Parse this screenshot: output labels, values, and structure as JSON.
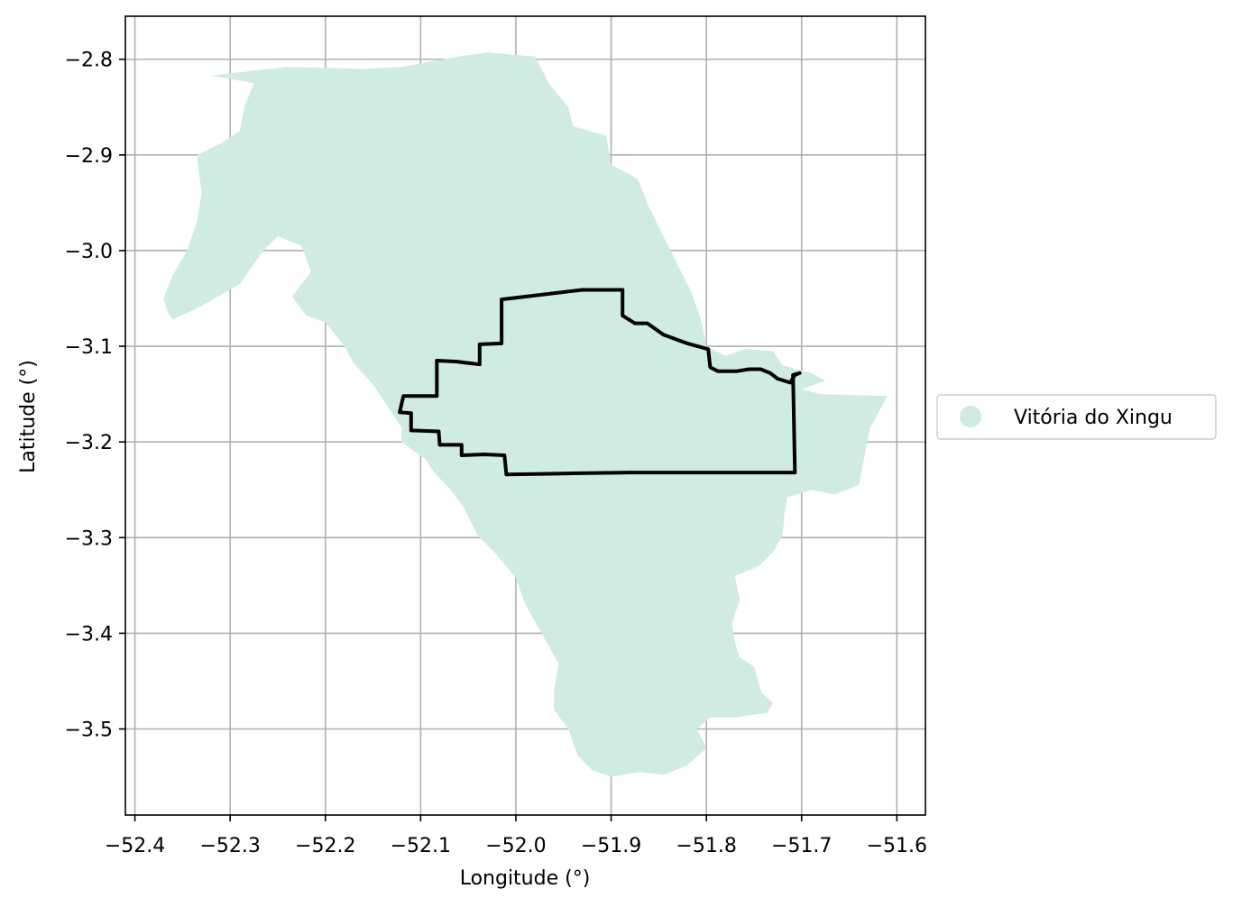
{
  "chart_data": {
    "type": "map",
    "xlabel": "Longitude (°)",
    "ylabel": "Latitude (°)",
    "xlim": [
      -52.41,
      -51.57
    ],
    "ylim": [
      -3.59,
      -2.755
    ],
    "grid": true,
    "x_ticks": [
      -52.4,
      -52.3,
      -52.2,
      -52.1,
      -52.0,
      -51.9,
      -51.8,
      -51.7,
      -51.6
    ],
    "x_tick_labels": [
      "−52.4",
      "−52.3",
      "−52.2",
      "−52.1",
      "−52.0",
      "−51.9",
      "−51.8",
      "−51.7",
      "−51.6"
    ],
    "y_ticks": [
      -2.8,
      -2.9,
      -3.0,
      -3.1,
      -3.2,
      -3.3,
      -3.4,
      -3.5
    ],
    "y_tick_labels": [
      "−2.8",
      "−2.9",
      "−3.0",
      "−3.1",
      "−3.2",
      "−3.3",
      "−3.4",
      "−3.5"
    ],
    "legend": {
      "placement": "center-right-outside",
      "entries": [
        {
          "label": "Vitória do Xingu",
          "color": "#d0ebdf",
          "marker": "circle"
        }
      ]
    },
    "region": {
      "name": "Vitória do Xingu",
      "fill": "#d0ebdf",
      "polygon": [
        [
          -52.32,
          -2.817
        ],
        [
          -52.24,
          -2.808
        ],
        [
          -52.16,
          -2.81
        ],
        [
          -52.12,
          -2.808
        ],
        [
          -52.06,
          -2.797
        ],
        [
          -52.03,
          -2.793
        ],
        [
          -51.98,
          -2.797
        ],
        [
          -51.965,
          -2.826
        ],
        [
          -51.945,
          -2.85
        ],
        [
          -51.94,
          -2.87
        ],
        [
          -51.905,
          -2.88
        ],
        [
          -51.9,
          -2.91
        ],
        [
          -51.872,
          -2.925
        ],
        [
          -51.86,
          -2.955
        ],
        [
          -51.845,
          -2.985
        ],
        [
          -51.83,
          -3.015
        ],
        [
          -51.815,
          -3.045
        ],
        [
          -51.805,
          -3.075
        ],
        [
          -51.8,
          -3.1
        ],
        [
          -51.78,
          -3.11
        ],
        [
          -51.76,
          -3.103
        ],
        [
          -51.73,
          -3.105
        ],
        [
          -51.72,
          -3.12
        ],
        [
          -51.69,
          -3.128
        ],
        [
          -51.675,
          -3.136
        ],
        [
          -51.7,
          -3.145
        ],
        [
          -51.68,
          -3.15
        ],
        [
          -51.61,
          -3.152
        ],
        [
          -51.628,
          -3.185
        ],
        [
          -51.64,
          -3.245
        ],
        [
          -51.665,
          -3.255
        ],
        [
          -51.69,
          -3.25
        ],
        [
          -51.715,
          -3.258
        ],
        [
          -51.718,
          -3.275
        ],
        [
          -51.72,
          -3.298
        ],
        [
          -51.73,
          -3.315
        ],
        [
          -51.745,
          -3.33
        ],
        [
          -51.77,
          -3.34
        ],
        [
          -51.765,
          -3.365
        ],
        [
          -51.773,
          -3.39
        ],
        [
          -51.77,
          -3.41
        ],
        [
          -51.765,
          -3.425
        ],
        [
          -51.75,
          -3.435
        ],
        [
          -51.742,
          -3.462
        ],
        [
          -51.73,
          -3.473
        ],
        [
          -51.736,
          -3.483
        ],
        [
          -51.77,
          -3.488
        ],
        [
          -51.796,
          -3.488
        ],
        [
          -51.81,
          -3.5
        ],
        [
          -51.8,
          -3.52
        ],
        [
          -51.82,
          -3.538
        ],
        [
          -51.845,
          -3.548
        ],
        [
          -51.87,
          -3.545
        ],
        [
          -51.9,
          -3.55
        ],
        [
          -51.92,
          -3.543
        ],
        [
          -51.935,
          -3.528
        ],
        [
          -51.945,
          -3.5
        ],
        [
          -51.96,
          -3.48
        ],
        [
          -51.96,
          -3.46
        ],
        [
          -51.955,
          -3.432
        ],
        [
          -51.97,
          -3.405
        ],
        [
          -51.99,
          -3.37
        ],
        [
          -52.0,
          -3.342
        ],
        [
          -52.02,
          -3.318
        ],
        [
          -52.04,
          -3.298
        ],
        [
          -52.055,
          -3.268
        ],
        [
          -52.07,
          -3.248
        ],
        [
          -52.085,
          -3.233
        ],
        [
          -52.095,
          -3.218
        ],
        [
          -52.12,
          -3.2
        ],
        [
          -52.12,
          -3.185
        ],
        [
          -52.13,
          -3.17
        ],
        [
          -52.15,
          -3.14
        ],
        [
          -52.17,
          -3.118
        ],
        [
          -52.18,
          -3.1
        ],
        [
          -52.2,
          -3.075
        ],
        [
          -52.22,
          -3.068
        ],
        [
          -52.235,
          -3.048
        ],
        [
          -52.215,
          -3.022
        ],
        [
          -52.225,
          -2.995
        ],
        [
          -52.25,
          -2.985
        ],
        [
          -52.265,
          -3.0
        ],
        [
          -52.29,
          -3.035
        ],
        [
          -52.33,
          -3.058
        ],
        [
          -52.36,
          -3.072
        ],
        [
          -52.365,
          -3.065
        ],
        [
          -52.37,
          -3.05
        ],
        [
          -52.36,
          -3.025
        ],
        [
          -52.345,
          -3.0
        ],
        [
          -52.335,
          -2.97
        ],
        [
          -52.33,
          -2.94
        ],
        [
          -52.335,
          -2.9
        ],
        [
          -52.31,
          -2.888
        ],
        [
          -52.29,
          -2.875
        ],
        [
          -52.285,
          -2.85
        ],
        [
          -52.275,
          -2.825
        ]
      ]
    },
    "boundary": {
      "stroke": "#000000",
      "polyline": [
        [
          -52.015,
          -3.051
        ],
        [
          -51.93,
          -3.041
        ],
        [
          -51.888,
          -3.041
        ],
        [
          -51.888,
          -3.068
        ],
        [
          -51.875,
          -3.076
        ],
        [
          -51.862,
          -3.076
        ],
        [
          -51.845,
          -3.088
        ],
        [
          -51.82,
          -3.097
        ],
        [
          -51.798,
          -3.103
        ],
        [
          -51.796,
          -3.122
        ],
        [
          -51.788,
          -3.126
        ],
        [
          -51.768,
          -3.126
        ],
        [
          -51.755,
          -3.124
        ],
        [
          -51.743,
          -3.124
        ],
        [
          -51.733,
          -3.128
        ],
        [
          -51.725,
          -3.134
        ],
        [
          -51.712,
          -3.138
        ],
        [
          -51.707,
          -3.13
        ],
        [
          -51.702,
          -3.128
        ],
        [
          -51.709,
          -3.13
        ],
        [
          -51.707,
          -3.232
        ],
        [
          -51.78,
          -3.232
        ],
        [
          -51.88,
          -3.232
        ],
        [
          -51.95,
          -3.233
        ],
        [
          -52.01,
          -3.234
        ],
        [
          -52.012,
          -3.214
        ],
        [
          -52.033,
          -3.213
        ],
        [
          -52.057,
          -3.214
        ],
        [
          -52.057,
          -3.203
        ],
        [
          -52.08,
          -3.203
        ],
        [
          -52.081,
          -3.189
        ],
        [
          -52.11,
          -3.188
        ],
        [
          -52.11,
          -3.17
        ],
        [
          -52.122,
          -3.169
        ],
        [
          -52.118,
          -3.152
        ],
        [
          -52.083,
          -3.152
        ],
        [
          -52.083,
          -3.115
        ],
        [
          -52.063,
          -3.116
        ],
        [
          -52.038,
          -3.119
        ],
        [
          -52.038,
          -3.098
        ],
        [
          -52.015,
          -3.097
        ],
        [
          -52.015,
          -3.051
        ]
      ]
    }
  }
}
